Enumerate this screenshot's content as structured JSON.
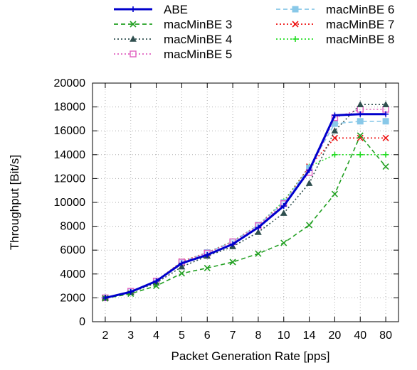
{
  "chart_data": {
    "type": "line",
    "title": "",
    "xlabel": "Packet Generation Rate [pps]",
    "ylabel": "Throughput [Bit/s]",
    "categories": [
      "2",
      "3",
      "4",
      "5",
      "6",
      "7",
      "8",
      "10",
      "14",
      "20",
      "40",
      "80"
    ],
    "ylim": [
      0,
      20000
    ],
    "yticks": [
      0,
      2000,
      4000,
      6000,
      8000,
      10000,
      12000,
      14000,
      16000,
      18000,
      20000
    ],
    "grid": true,
    "legend_position": "top",
    "series": [
      {
        "name": "ABE",
        "color": "#0000cc",
        "dash": "solid",
        "marker": "plus",
        "values": [
          2000,
          2500,
          3400,
          4900,
          5600,
          6500,
          7900,
          9700,
          12700,
          17300,
          17400,
          17400
        ]
      },
      {
        "name": "macMinBE 3",
        "color": "#22a022",
        "dash": "dashed",
        "marker": "x",
        "values": [
          1950,
          2350,
          3000,
          4050,
          4500,
          5000,
          5700,
          6600,
          8100,
          10700,
          15600,
          13000
        ]
      },
      {
        "name": "macMinBE 4",
        "color": "#2f4f4f",
        "dash": "dotted",
        "marker": "triangle",
        "values": [
          2000,
          2450,
          3250,
          4600,
          5500,
          6300,
          7500,
          9100,
          11600,
          16000,
          18200,
          18200
        ]
      },
      {
        "name": "macMinBE 5",
        "color": "#e060c0",
        "dash": "dotted",
        "marker": "square",
        "values": [
          2000,
          2550,
          3400,
          5000,
          5750,
          6700,
          8050,
          9900,
          12500,
          17100,
          17800,
          17800
        ]
      },
      {
        "name": "macMinBE 6",
        "color": "#88c8e8",
        "dash": "dashed",
        "marker": "filled-square",
        "values": [
          2000,
          2550,
          3400,
          5000,
          5800,
          6700,
          8100,
          10000,
          12900,
          16600,
          16800,
          16800
        ]
      },
      {
        "name": "macMinBE 7",
        "color": "#ee1111",
        "dash": "dotted",
        "marker": "x",
        "values": [
          2000,
          2550,
          3400,
          5050,
          5800,
          6700,
          8100,
          10000,
          13000,
          15400,
          15400,
          15400
        ]
      },
      {
        "name": "macMinBE 8",
        "color": "#22dd22",
        "dash": "dotted",
        "marker": "plus",
        "values": [
          2000,
          2550,
          3400,
          5050,
          5800,
          6750,
          8100,
          10100,
          13000,
          14000,
          14000,
          14000
        ]
      }
    ]
  }
}
